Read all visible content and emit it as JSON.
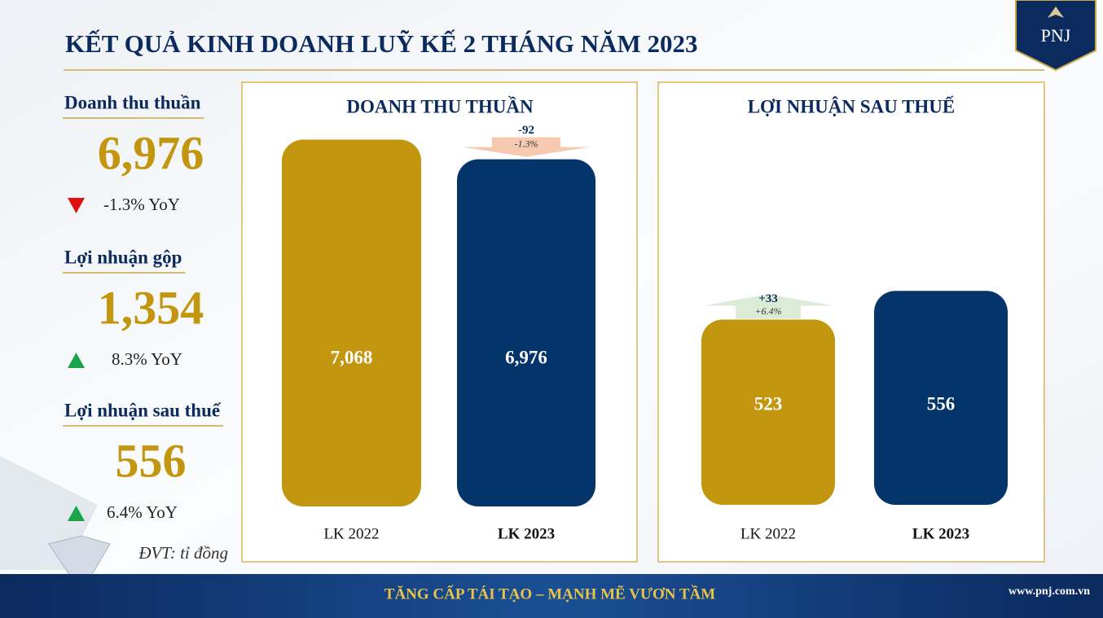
{
  "title": "KẾT QUẢ KINH DOANH LUỸ KẾ 2 THÁNG NĂM 2023",
  "logo": "PNJ",
  "kpis": [
    {
      "label": "Doanh thu thuần",
      "value": "6,976",
      "change": "-1.3% YoY",
      "trend": "down"
    },
    {
      "label": "Lợi nhuận gộp",
      "value": "1,354",
      "change": "8.3% YoY",
      "trend": "up"
    },
    {
      "label": "Lợi nhuận sau thuế",
      "value": "556",
      "change": "6.4% YoY",
      "trend": "up"
    }
  ],
  "unit_note": "ĐVT: tỉ đồng",
  "chart_data": [
    {
      "type": "bar",
      "title": "DOANH THU THUẦN",
      "categories": [
        "LK 2022",
        "LK 2023"
      ],
      "values": [
        7068,
        6976
      ],
      "value_labels": [
        "7,068",
        "6,976"
      ],
      "colors": [
        "#c3960f",
        "#03356a"
      ],
      "ylim": [
        5350,
        7150
      ],
      "annotations": [
        "-92",
        "-1.3%"
      ]
    },
    {
      "type": "bar",
      "title": "LỢI NHUẬN SAU THUẾ",
      "categories": [
        "LK 2022",
        "LK 2023"
      ],
      "values": [
        523,
        556
      ],
      "value_labels": [
        "523",
        "556"
      ],
      "colors": [
        "#c3960f",
        "#03356a"
      ],
      "ylim": [
        310,
        750
      ],
      "annotations": [
        "+33",
        "+6.4%"
      ]
    }
  ],
  "footer": {
    "slogan": "TĂNG CẤP TÁI TẠO – MẠNH MẼ VƯƠN TẦM",
    "website": "www.pnj.com.vn"
  }
}
